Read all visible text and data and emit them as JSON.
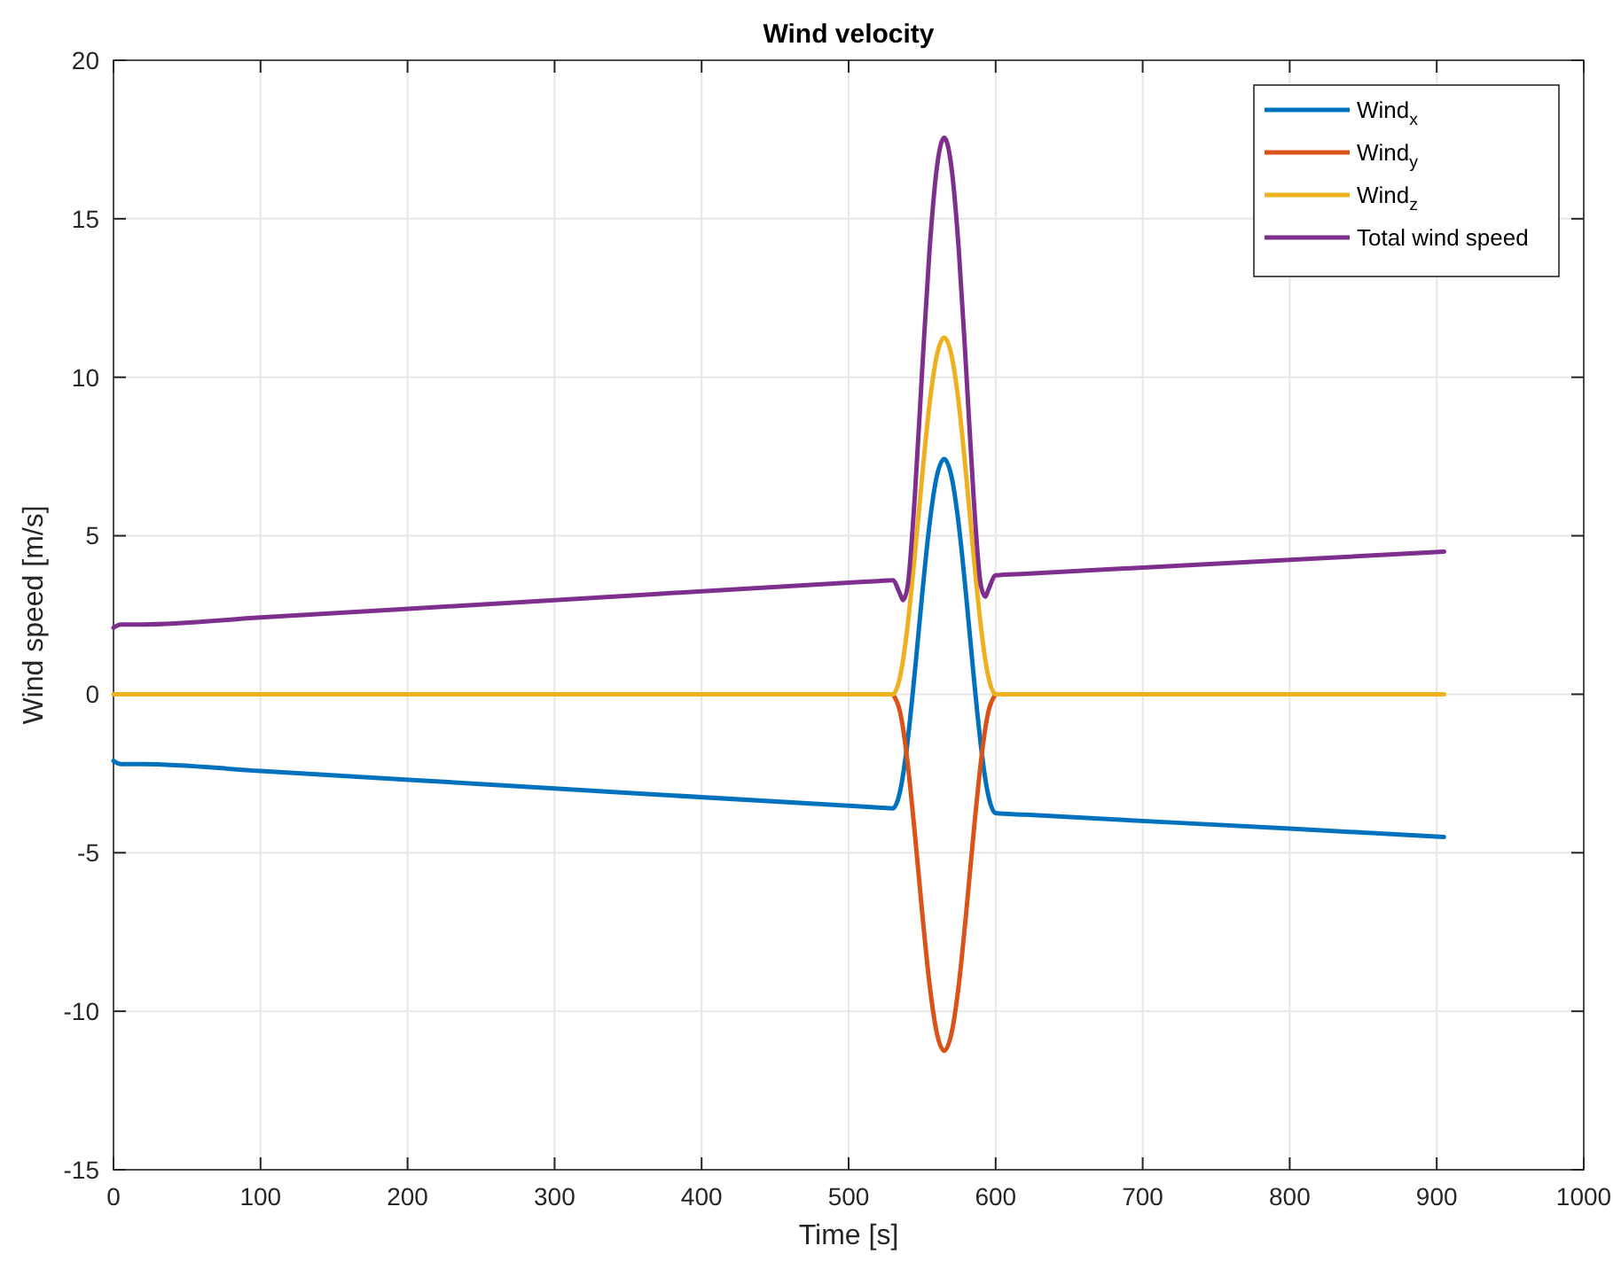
{
  "chart_data": {
    "type": "line",
    "title": "Wind velocity",
    "xlabel": "Time [s]",
    "ylabel": "Wind speed [m/s]",
    "x": [
      0,
      5,
      20,
      100,
      300,
      500,
      520,
      530,
      535,
      537,
      540,
      545,
      550,
      555,
      560,
      565,
      570,
      575,
      580,
      585,
      590,
      593,
      595,
      600,
      620,
      800,
      905
    ],
    "series": [
      {
        "name": "Wind$_{x}$",
        "color": "#0072bd",
        "values": [
          -2.1,
          -2.2,
          -2.2,
          -2.42,
          -2.97,
          -3.52,
          -3.57,
          -3.6,
          -3.06,
          -2.55,
          -1.53,
          0.69,
          3.14,
          5.36,
          6.88,
          7.42,
          6.86,
          5.31,
          3.07,
          0.6,
          -1.64,
          -2.68,
          -3.19,
          -3.75,
          -3.8,
          -4.24,
          -4.5
        ]
      },
      {
        "name": "Wind$_{y}$",
        "color": "#d95319",
        "values": [
          null,
          null,
          null,
          null,
          null,
          null,
          null,
          0,
          -0.56,
          -1.07,
          -2.12,
          -4.38,
          -6.87,
          -9.14,
          -10.69,
          -11.25,
          -10.69,
          -9.14,
          -6.87,
          -4.38,
          -2.12,
          -1.07,
          -0.56,
          0,
          null,
          null,
          null
        ]
      },
      {
        "name": "Wind$_{z}$",
        "color": "#edb120",
        "values": [
          0,
          0,
          0,
          0,
          0,
          0,
          0,
          0,
          0.56,
          1.07,
          2.12,
          4.38,
          6.87,
          9.14,
          10.69,
          11.25,
          10.69,
          9.14,
          6.87,
          4.38,
          2.12,
          1.07,
          0.56,
          0,
          0,
          0,
          0
        ]
      },
      {
        "name": "Total wind speed",
        "color": "#7e2f8e",
        "values": [
          2.1,
          2.2,
          2.2,
          2.42,
          2.97,
          3.52,
          3.57,
          3.6,
          3.16,
          2.97,
          3.37,
          6.23,
          10.21,
          13.99,
          16.61,
          17.56,
          16.6,
          13.97,
          10.19,
          6.22,
          3.42,
          3.08,
          3.29,
          3.75,
          3.8,
          4.24,
          4.5
        ]
      }
    ],
    "xlim": [
      0,
      1000
    ],
    "xticks": [
      0,
      100,
      200,
      300,
      400,
      500,
      600,
      700,
      800,
      900,
      1000
    ],
    "ylim": [
      -15,
      20
    ],
    "yticks": [
      -15,
      -10,
      -5,
      0,
      5,
      10,
      15,
      20
    ],
    "grid": true,
    "legend": "top right",
    "line_style": "solid",
    "marker": "none"
  }
}
